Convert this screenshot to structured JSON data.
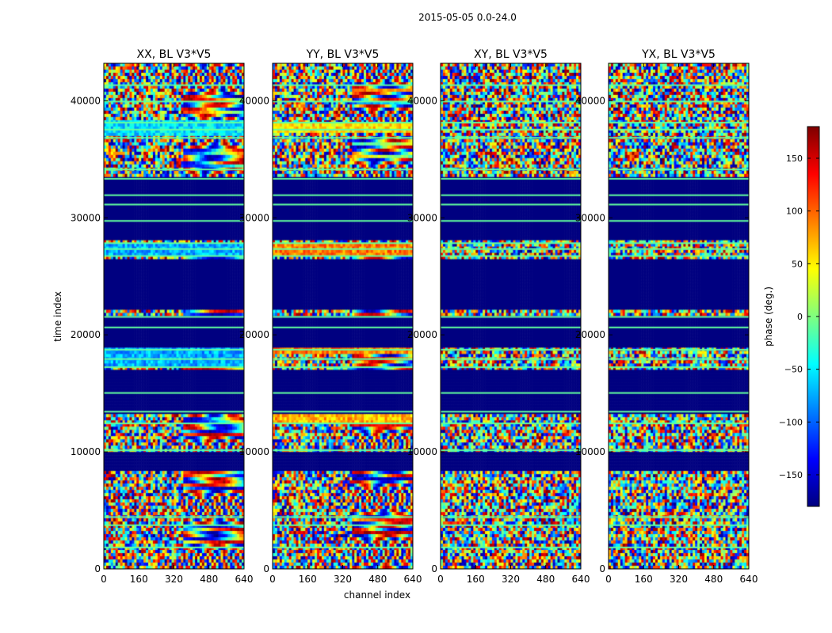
{
  "chart_data": {
    "type": "heatmap",
    "suptitle": "2015-05-05 0.0-24.0",
    "xlabel": "channel index",
    "ylabel": "time index",
    "xlim": [
      0,
      640
    ],
    "ylim": [
      0,
      43200
    ],
    "xticks": [
      0,
      160,
      320,
      480,
      640
    ],
    "yticks": [
      0,
      10000,
      20000,
      30000,
      40000
    ],
    "panels": [
      {
        "title": "XX, BL V3*V5",
        "pol": "XX",
        "emph": [
          [
            17300,
            19000,
            0.3
          ],
          [
            26800,
            27900,
            0.3
          ],
          [
            36900,
            38300,
            0.35
          ]
        ]
      },
      {
        "title": "YY, BL V3*V5",
        "pol": "YY",
        "emph": [
          [
            18300,
            19000,
            0.75
          ],
          [
            26800,
            27900,
            0.75
          ],
          [
            12400,
            13200,
            0.7
          ],
          [
            37300,
            38200,
            0.65
          ]
        ]
      },
      {
        "title": "XY, BL V3*V5",
        "pol": "XY",
        "emph": []
      },
      {
        "title": "YX, BL V3*V5",
        "pol": "YX",
        "emph": []
      }
    ],
    "blank_time_ranges": [
      [
        8300,
        10000
      ],
      [
        13300,
        17000
      ],
      [
        19000,
        21700
      ],
      [
        22100,
        26500
      ],
      [
        28000,
        33500
      ]
    ],
    "bright_line_times": [
      1900,
      3800,
      4500,
      10200,
      12500,
      13500,
      15100,
      17300,
      18000,
      18800,
      20700,
      21600,
      26800,
      27400,
      27900,
      29800,
      31200,
      32000,
      33400,
      34200,
      36900,
      37600,
      38200,
      40000,
      41400
    ],
    "colorbar": {
      "label": "phase (deg.)",
      "range": [
        -180,
        180
      ],
      "ticks": [
        -150,
        -100,
        -50,
        0,
        50,
        100,
        150
      ],
      "colormap": "jet",
      "colors": [
        "#00007f",
        "#0000ff",
        "#007fff",
        "#00ffff",
        "#7fff7f",
        "#ffff00",
        "#ff7f00",
        "#ff0000",
        "#7f0000"
      ]
    }
  }
}
